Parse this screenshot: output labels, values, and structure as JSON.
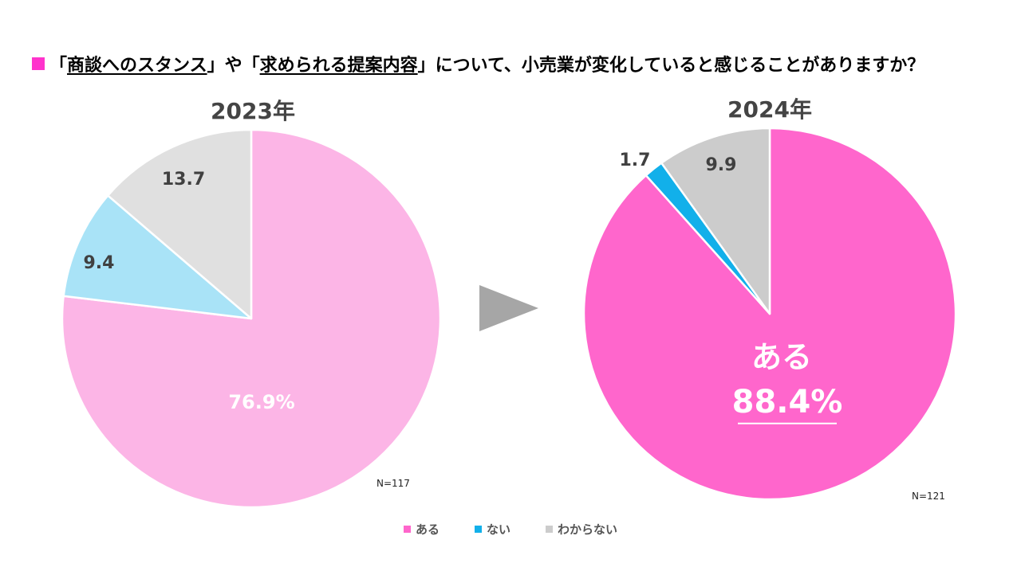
{
  "title": {
    "p1": "「",
    "p2": "商談へのスタンス",
    "p3": "」や「",
    "p4": "求められる提案内容",
    "p5": "」について、小売業が変化していると感じることがありますか？"
  },
  "colors": {
    "accent": "#ff33cc",
    "arrow": "#a6a6a6"
  },
  "chart_data": [
    {
      "type": "pie",
      "title": "2023年",
      "n_label": "N=117",
      "series": [
        {
          "name": "ある",
          "value": 76.9,
          "label": "76.9%",
          "color": "#fcb5e6"
        },
        {
          "name": "ない",
          "value": 9.4,
          "label": "9.4",
          "color": "#a9e3f7"
        },
        {
          "name": "わからない",
          "value": 13.7,
          "label": "13.7",
          "color": "#e0e0e0"
        }
      ]
    },
    {
      "type": "pie",
      "title": "2024年",
      "n_label": "N=121",
      "highlight_label": "ある",
      "series": [
        {
          "name": "ある",
          "value": 88.4,
          "label": "88.4%",
          "color": "#ff66cc"
        },
        {
          "name": "ない",
          "value": 1.7,
          "label": "1.7",
          "color": "#12b0ea"
        },
        {
          "name": "わからない",
          "value": 9.9,
          "label": "9.9",
          "color": "#cccccc"
        }
      ]
    }
  ],
  "legend": [
    {
      "label": "ある",
      "color": "#ff66cc"
    },
    {
      "label": "ない",
      "color": "#12b0ea"
    },
    {
      "label": "わからない",
      "color": "#cccccc"
    }
  ]
}
